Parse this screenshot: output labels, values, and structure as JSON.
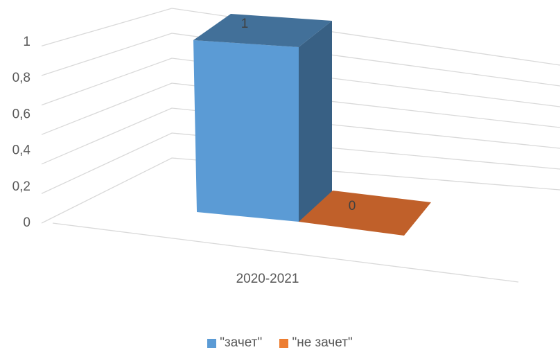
{
  "chart_data": {
    "type": "bar",
    "categories": [
      "2020-2021"
    ],
    "series": [
      {
        "name": "\"зачет\"",
        "values": [
          1
        ],
        "color": "#5B9BD5"
      },
      {
        "name": "\"не зачет\"",
        "values": [
          0
        ],
        "color": "#C0602A"
      }
    ],
    "ylim": [
      0,
      1.2
    ],
    "yticks": [
      "0",
      "0,2",
      "0,4",
      "0,6",
      "0,8",
      "1"
    ],
    "data_labels": [
      "1",
      "0"
    ],
    "grid": true,
    "legend_position": "bottom"
  }
}
